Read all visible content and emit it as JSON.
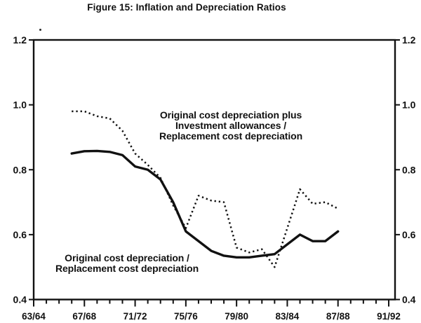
{
  "title": "Figure 15: Inflation and Depreciation Ratios",
  "annotations": {
    "dotted_label": {
      "lines": [
        "Original cost depreciation plus",
        "Investment allowances /",
        "Replacement cost depreciation"
      ]
    },
    "solid_label": {
      "lines": [
        "Original cost depreciation /",
        "Replacement cost depreciation"
      ]
    }
  },
  "colors": {
    "ink": "#111111",
    "background": "#ffffff"
  },
  "chart_data": {
    "type": "line",
    "title": "Figure 15: Inflation and Depreciation Ratios",
    "xlabel": "",
    "ylabel": "",
    "ylim": [
      0.4,
      1.2
    ],
    "grid": false,
    "axis_sides": [
      "left",
      "right"
    ],
    "legend_position": "inline-annotations",
    "y_tick_values": [
      1.2,
      1.0,
      0.8,
      0.6,
      0.4
    ],
    "y_axis_tick_labels": [
      "1.2",
      "1.0",
      "0.8",
      "0.6",
      "0.4"
    ],
    "x_axis_tick_labels": [
      "63/64",
      "67/68",
      "71/72",
      "75/76",
      "79/80",
      "83/84",
      "87/88",
      "91/92"
    ],
    "x_axis_years_span": 29,
    "x_major_tick_every": 4,
    "x": [
      "66/67",
      "67/68",
      "68/69",
      "69/70",
      "70/71",
      "71/72",
      "72/73",
      "73/74",
      "74/75",
      "75/76",
      "76/77",
      "77/78",
      "78/79",
      "79/80",
      "80/81",
      "81/82",
      "82/83",
      "83/84",
      "84/85",
      "85/86",
      "86/87",
      "87/88"
    ],
    "series": [
      {
        "name": "Original cost depreciation / Replacement cost depreciation",
        "style": "solid",
        "values": [
          0.85,
          0.857,
          0.858,
          0.855,
          0.845,
          0.81,
          0.8,
          0.77,
          0.7,
          0.61,
          0.58,
          0.55,
          0.535,
          0.53,
          0.53,
          0.535,
          0.54,
          0.57,
          0.6,
          0.58,
          0.58,
          0.61
        ]
      },
      {
        "name": "Original cost depreciation plus Investment allowances / Replacement cost depreciation",
        "style": "dotted",
        "values": [
          0.98,
          0.98,
          0.965,
          0.958,
          0.92,
          0.85,
          0.815,
          0.775,
          0.69,
          0.62,
          0.72,
          0.705,
          0.7,
          0.56,
          0.545,
          0.555,
          0.5,
          0.62,
          0.74,
          0.695,
          0.7,
          0.68
        ]
      }
    ]
  }
}
